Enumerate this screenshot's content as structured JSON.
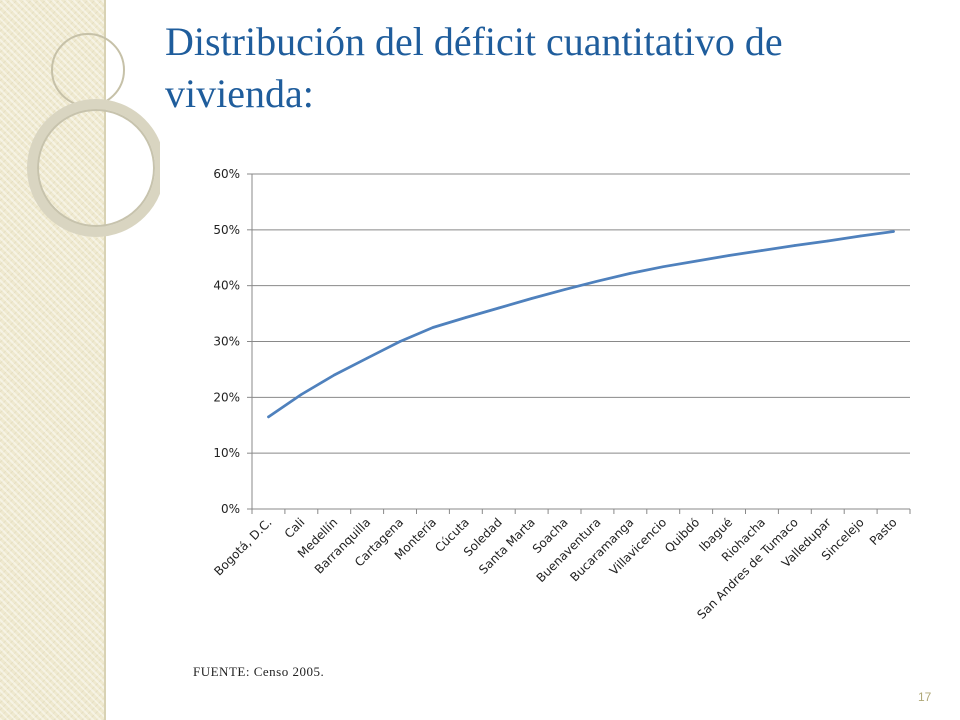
{
  "slide": {
    "title": "Distribución del déficit cuantitativo de vivienda:",
    "source": "FUENTE: Censo 2005.",
    "page_number": "17"
  },
  "colors": {
    "title": "#1f5d9c",
    "series_line": "#4f81bd",
    "gridline": "#898989",
    "background_band": "#efe9cf"
  },
  "chart_data": {
    "type": "line",
    "categories": [
      "Bogotá, D.C.",
      "Cali",
      "Medellín",
      "Barranquilla",
      "Cartagena",
      "Montería",
      "Cúcuta",
      "Soledad",
      "Santa Marta",
      "Soacha",
      "Buenaventura",
      "Bucaramanga",
      "Villavicencio",
      "Quibdó",
      "Ibagué",
      "Riohacha",
      "San Andres de Tumaco",
      "Valledupar",
      "Sincelejo",
      "Pasto"
    ],
    "series": [
      {
        "values": [
          0.165,
          0.205,
          0.24,
          0.27,
          0.3,
          0.325,
          0.343,
          0.36,
          0.377,
          0.393,
          0.408,
          0.422,
          0.434,
          0.444,
          0.454,
          0.463,
          0.472,
          0.48,
          0.489,
          0.497
        ]
      }
    ],
    "y_ticks": [
      "0%",
      "10%",
      "20%",
      "30%",
      "40%",
      "50%",
      "60%"
    ],
    "ylim": [
      0,
      0.6
    ],
    "grid": true,
    "legend": "none"
  }
}
